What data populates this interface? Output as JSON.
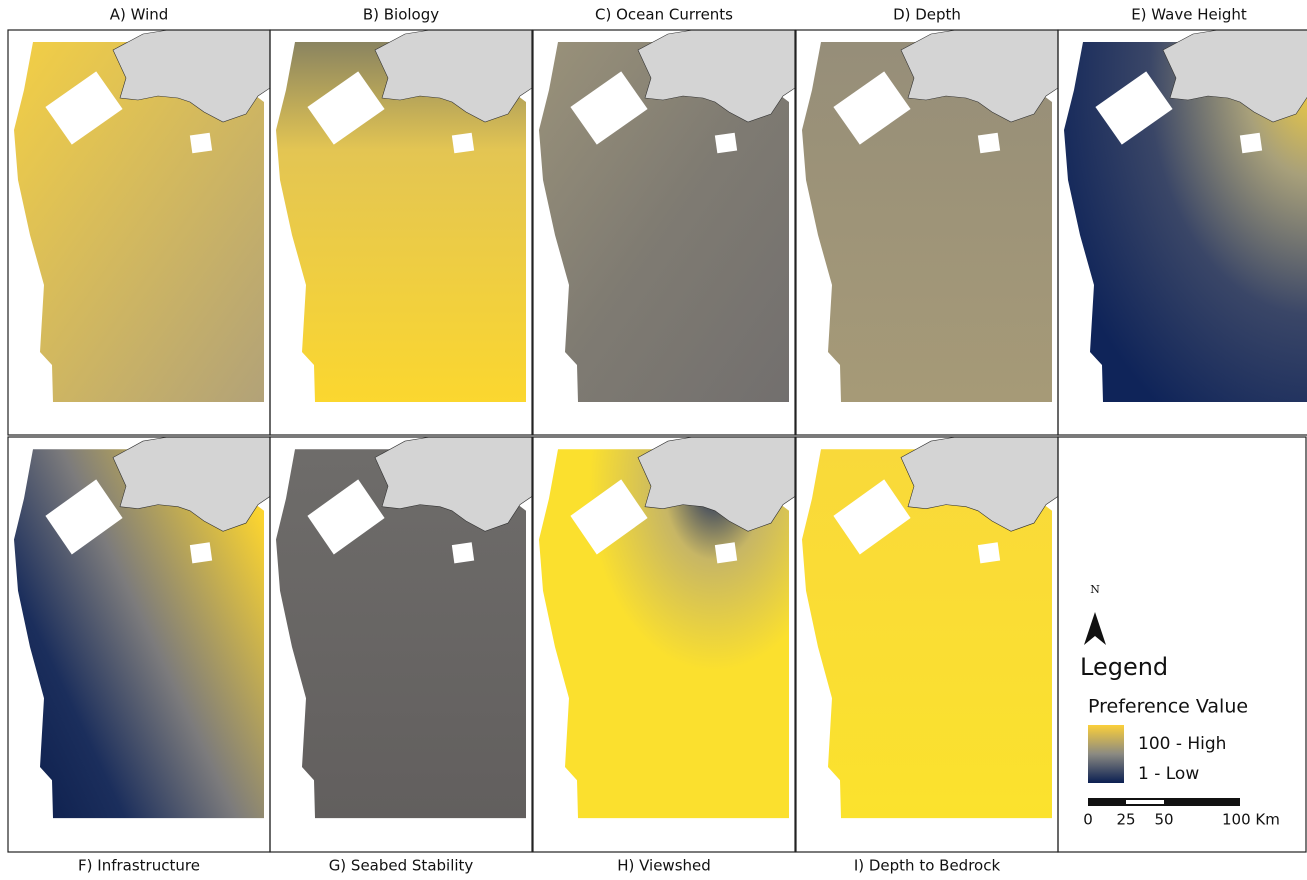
{
  "panels": [
    {
      "label": "A) Wind"
    },
    {
      "label": "B) Biology"
    },
    {
      "label": "C) Ocean Currents"
    },
    {
      "label": "D) Depth"
    },
    {
      "label": "E) Wave Height"
    },
    {
      "label": "F) Infrastructure"
    },
    {
      "label": "G) Seabed Stability"
    },
    {
      "label": "H) Viewshed"
    },
    {
      "label": "I) Depth to Bedrock"
    }
  ],
  "legend": {
    "north": "N",
    "title": "Legend",
    "subtitle": "Preference Value",
    "high": "100 - High",
    "low": "1 - Low",
    "scale_labels": [
      "0",
      "25",
      "50",
      "100 Km"
    ]
  }
}
